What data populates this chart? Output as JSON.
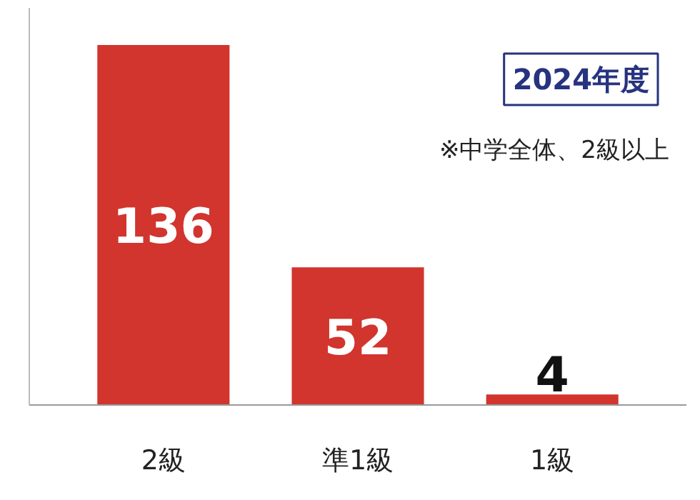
{
  "chart_data": {
    "type": "bar",
    "title": "2024年度",
    "annotations": [
      "※中学全体、2級以上"
    ],
    "categories": [
      "2級",
      "準1級",
      "1級"
    ],
    "values": [
      136,
      52,
      4
    ],
    "color": "#d1352d",
    "ylim": [
      0,
      150
    ],
    "data_labels": true,
    "grid": false,
    "tick_labels": "x"
  }
}
